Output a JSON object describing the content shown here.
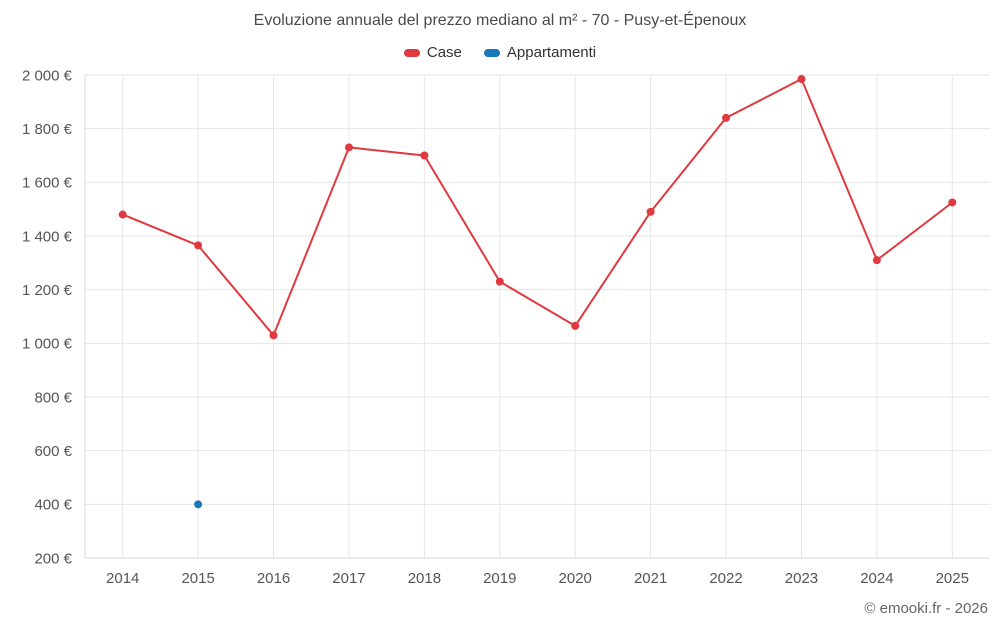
{
  "title": "Evoluzione annuale del prezzo mediano al m² - 70 - Pusy-et-Épenoux",
  "footer": "© emooki.fr - 2026",
  "chart_data": {
    "type": "line",
    "title": "Evoluzione annuale del prezzo mediano al m² - 70 - Pusy-et-Épenoux",
    "categories": [
      "2014",
      "2015",
      "2016",
      "2017",
      "2018",
      "2019",
      "2020",
      "2021",
      "2022",
      "2023",
      "2024",
      "2025"
    ],
    "series": [
      {
        "name": "Case",
        "color": "#e0393f",
        "values": [
          1480,
          1365,
          1030,
          1730,
          1700,
          1230,
          1065,
          1490,
          1840,
          1985,
          1310,
          1525
        ]
      },
      {
        "name": "Appartamenti",
        "color": "#1779ba",
        "values": [
          null,
          400,
          null,
          null,
          null,
          null,
          null,
          null,
          null,
          null,
          null,
          null
        ]
      }
    ],
    "xlabel": "",
    "ylabel": "",
    "ytick_suffix": " €",
    "ylim": [
      200,
      2000
    ],
    "ytick_step": 200,
    "grid": true,
    "legend_position": "top"
  }
}
